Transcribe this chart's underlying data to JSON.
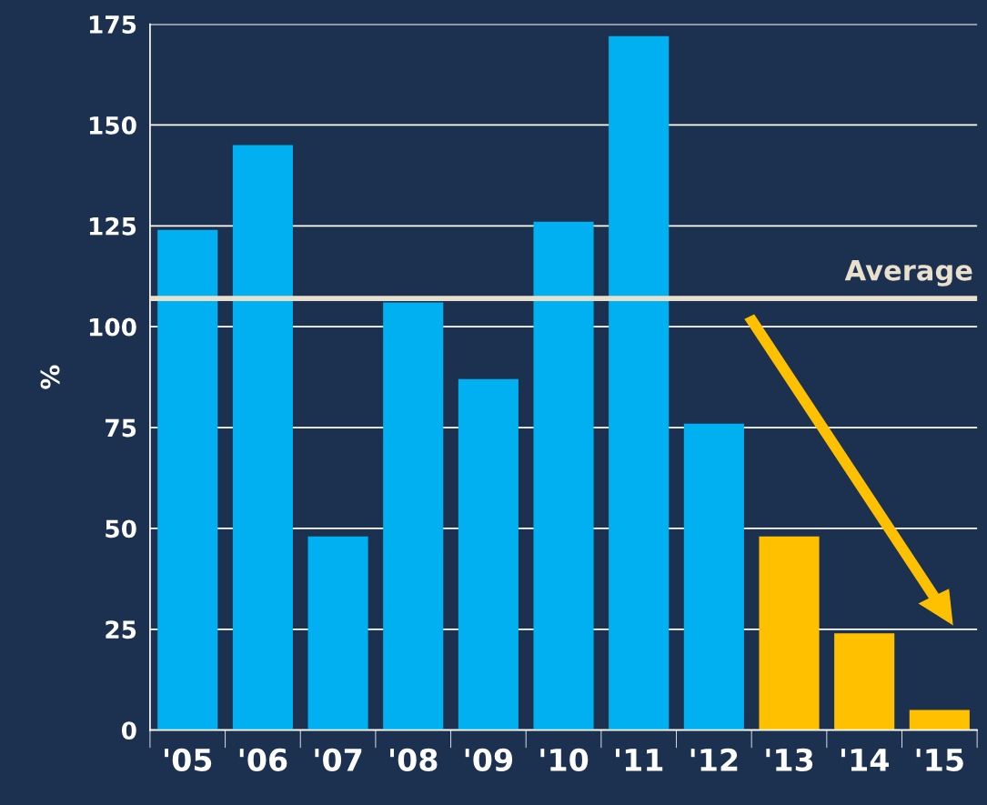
{
  "chart_data": {
    "type": "bar",
    "ylabel": "%",
    "categories": [
      "'05",
      "'06",
      "'07",
      "'08",
      "'09",
      "'10",
      "'11",
      "'12",
      "'13",
      "'14",
      "'15"
    ],
    "values": [
      124,
      145,
      48,
      106,
      87,
      126,
      172,
      76,
      48,
      24,
      5
    ],
    "colors": [
      "#00b0f0",
      "#00b0f0",
      "#00b0f0",
      "#00b0f0",
      "#00b0f0",
      "#00b0f0",
      "#00b0f0",
      "#00b0f0",
      "#ffc000",
      "#ffc000",
      "#ffc000"
    ],
    "ylim": [
      0,
      175
    ],
    "yticks": [
      0,
      25,
      50,
      75,
      100,
      125,
      150,
      175
    ],
    "grid": "y",
    "ref_lines": [
      {
        "axis": "y",
        "value": 107,
        "label": "Average",
        "color": "#e8e0cc"
      }
    ]
  }
}
